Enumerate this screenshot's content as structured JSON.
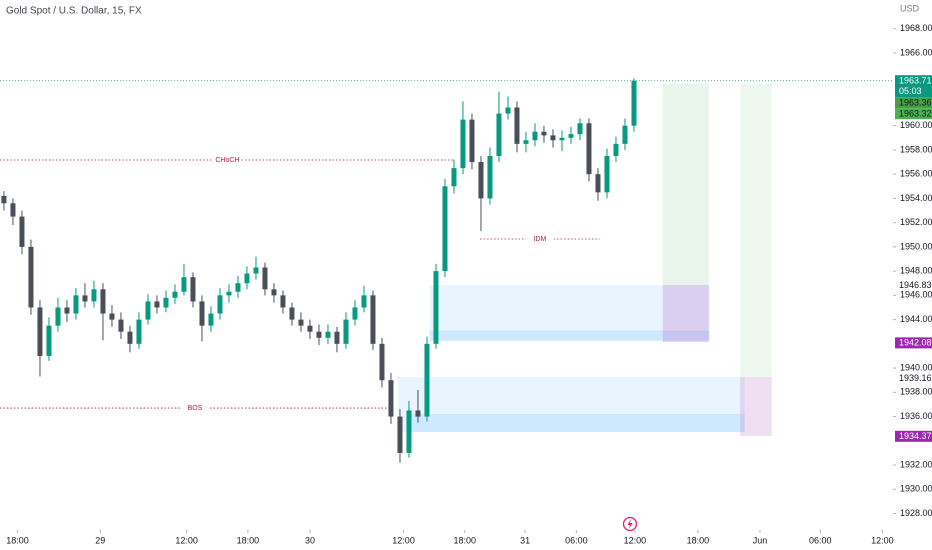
{
  "chart_data": {
    "type": "candlestick",
    "title": "Gold Spot / U.S. Dollar, 15, FX",
    "currency": "USD",
    "up_color": "#089981",
    "down_color": "#4a4e57",
    "open": [
      1954.2,
      1953.6,
      1952.5,
      1950,
      1945,
      1941,
      1943.5,
      1945,
      1944.5,
      1946,
      1945.5,
      1946.5,
      1944.5,
      1944,
      1943,
      1942,
      1944,
      1945.5,
      1945,
      1945.8,
      1946.3,
      1947.5,
      1945.5,
      1943.5,
      1944.5,
      1946,
      1946.3,
      1947,
      1947.8,
      1948.3,
      1946.5,
      1946,
      1945,
      1944,
      1943.5,
      1943,
      1942.5,
      1943,
      1942,
      1944,
      1945,
      1946,
      1942,
      1939,
      1936,
      1933,
      1936.5,
      1936,
      1942,
      1948,
      1955,
      1956.5,
      1960.5,
      1957,
      1954,
      1957.5,
      1961,
      1961.5,
      1958.5,
      1958.8,
      1959.5,
      1959.2,
      1958.8,
      1959,
      1959.3,
      1960.2,
      1956,
      1954.5,
      1957.5,
      1958.5,
      1960
    ],
    "high": [
      1954.6,
      1954.0,
      1953.0,
      1950.6,
      1945.6,
      1944.2,
      1945.8,
      1945.6,
      1946.6,
      1947.0,
      1947.2,
      1947.0,
      1945.2,
      1944.6,
      1943.5,
      1944.6,
      1946.1,
      1946.0,
      1946.4,
      1946.9,
      1948.6,
      1947.9,
      1946.0,
      1945.1,
      1946.6,
      1946.9,
      1947.6,
      1948.4,
      1949.2,
      1948.7,
      1947.0,
      1946.4,
      1945.4,
      1944.6,
      1944.0,
      1943.6,
      1943.6,
      1943.4,
      1944.6,
      1945.6,
      1946.8,
      1946.4,
      1942.5,
      1939.6,
      1936.6,
      1937.3,
      1938.2,
      1942.6,
      1948.6,
      1955.6,
      1957.2,
      1962.0,
      1961.0,
      1957.5,
      1958.2,
      1962.8,
      1962.4,
      1962.0,
      1959.5,
      1960.2,
      1960.0,
      1959.7,
      1959.6,
      1959.9,
      1960.6,
      1960.6,
      1956.5,
      1958.1,
      1959.1,
      1960.6,
      1963.9
    ],
    "low": [
      1953.0,
      1951.8,
      1949.4,
      1944.4,
      1939.3,
      1940.6,
      1943.0,
      1943.8,
      1944.0,
      1945.0,
      1945.0,
      1942.3,
      1943.4,
      1942.4,
      1941.3,
      1941.6,
      1943.6,
      1944.5,
      1944.6,
      1945.3,
      1946.0,
      1945.0,
      1942.2,
      1943.0,
      1944.0,
      1945.4,
      1945.8,
      1946.5,
      1947.3,
      1946.0,
      1945.4,
      1944.5,
      1943.5,
      1943.0,
      1942.4,
      1941.9,
      1942.0,
      1941.3,
      1941.6,
      1943.5,
      1944.6,
      1941.5,
      1938.4,
      1935.4,
      1932.2,
      1932.6,
      1935.5,
      1935.6,
      1941.6,
      1947.5,
      1954.4,
      1956.0,
      1956.4,
      1951.3,
      1953.5,
      1957.0,
      1960.5,
      1957.8,
      1957.8,
      1958.3,
      1958.6,
      1958.2,
      1957.9,
      1958.5,
      1958.8,
      1955.4,
      1953.8,
      1954.0,
      1957.0,
      1958.0,
      1959.5
    ],
    "close": [
      1953.6,
      1952.5,
      1950,
      1945,
      1941,
      1943.5,
      1945,
      1944.5,
      1946,
      1945.5,
      1946.5,
      1944.5,
      1944,
      1943,
      1942,
      1944,
      1945.5,
      1945,
      1945.8,
      1946.3,
      1947.5,
      1945.5,
      1943.5,
      1944.5,
      1946,
      1946.3,
      1947,
      1947.8,
      1948.3,
      1946.5,
      1946,
      1945,
      1944,
      1943.5,
      1943,
      1942.5,
      1943,
      1942,
      1944,
      1945,
      1946,
      1942,
      1939,
      1936,
      1933,
      1936.5,
      1936,
      1942,
      1948,
      1955,
      1956.5,
      1960.5,
      1957,
      1954,
      1957.5,
      1961,
      1961.5,
      1958.5,
      1958.8,
      1959.5,
      1959.2,
      1958.8,
      1959,
      1959.3,
      1960.2,
      1956,
      1954.5,
      1957.5,
      1958.5,
      1960,
      1963.71
    ],
    "xlim": [
      -0.44,
      98.78
    ],
    "ylim": [
      1926.64,
      1970.37
    ],
    "xticks": [
      {
        "value": 1.5,
        "label": "18:00"
      },
      {
        "value": 10.7,
        "label": "29"
      },
      {
        "value": 20.3,
        "label": "12:00"
      },
      {
        "value": 27.1,
        "label": "18:00"
      },
      {
        "value": 34,
        "label": "30"
      },
      {
        "value": 44.4,
        "label": "12:00"
      },
      {
        "value": 51.2,
        "label": "18:00"
      },
      {
        "value": 57.9,
        "label": "31"
      },
      {
        "value": 63.6,
        "label": "06:00"
      },
      {
        "value": 70.1,
        "label": "12:00"
      },
      {
        "value": 77.1,
        "label": "18:00"
      },
      {
        "value": 84,
        "label": "Jun"
      },
      {
        "value": 90.7,
        "label": "06:00"
      },
      {
        "value": 97.6,
        "label": "12:00"
      }
    ],
    "yticks": [
      {
        "value": 1968,
        "label": "1968.00"
      },
      {
        "value": 1966,
        "label": "1966.00"
      },
      {
        "value": 1960,
        "label": "1960.00"
      },
      {
        "value": 1958,
        "label": "1958.00"
      },
      {
        "value": 1956,
        "label": "1956.00"
      },
      {
        "value": 1954,
        "label": "1954.00"
      },
      {
        "value": 1952,
        "label": "1952.00"
      },
      {
        "value": 1950,
        "label": "1950.00"
      },
      {
        "value": 1948,
        "label": "1948.00"
      },
      {
        "value": 1946,
        "label": "1946.00"
      },
      {
        "value": 1944,
        "label": "1944.00"
      },
      {
        "value": 1940,
        "label": "1940.00"
      },
      {
        "value": 1938,
        "label": "1938.00"
      },
      {
        "value": 1936,
        "label": "1936.00"
      },
      {
        "value": 1932,
        "label": "1932.00"
      },
      {
        "value": 1930,
        "label": "1930.00"
      },
      {
        "value": 1928,
        "label": "1928.00"
      }
    ],
    "levels": [
      {
        "label": "CHoCH",
        "value": 1957.17,
        "from": -0.44,
        "to": 50.1,
        "color": "#b71c3c"
      },
      {
        "label": "BOS",
        "value": 1936.7,
        "from": -0.44,
        "to": 42.9,
        "color": "#b71c3c"
      },
      {
        "label": "IDM",
        "value": 1950.65,
        "from": 52.9,
        "to": 66.2,
        "color": "#b71c3c"
      }
    ],
    "zones": [
      {
        "x": [
          47.3,
          78.4
        ],
        "y": [
          1942.3,
          1946.85
        ],
        "color": "rgba(33,150,243,0.10)"
      },
      {
        "x": [
          47.3,
          78.4
        ],
        "y": [
          1942.2,
          1943.1
        ],
        "color": "rgba(33,150,243,0.12)"
      },
      {
        "x": [
          43.8,
          82.3
        ],
        "y": [
          1934.72,
          1939.26
        ],
        "color": "rgba(33,150,243,0.10)"
      },
      {
        "x": [
          45,
          82.3
        ],
        "y": [
          1934.72,
          1936.21
        ],
        "color": "rgba(33,150,243,0.12)"
      },
      {
        "x": [
          73.2,
          78.3
        ],
        "y": [
          1946.85,
          1963.44
        ],
        "color": "rgba(76,175,80,0.12)"
      },
      {
        "x": [
          73.2,
          78.3
        ],
        "y": [
          1942.15,
          1946.85
        ],
        "color": "rgba(156,39,176,0.18)"
      },
      {
        "x": [
          81.8,
          85.3
        ],
        "y": [
          1939.26,
          1963.44
        ],
        "color": "rgba(76,175,80,0.10)"
      },
      {
        "x": [
          81.8,
          85.3
        ],
        "y": [
          1934.4,
          1939.26
        ],
        "color": "rgba(186,104,200,0.22)"
      }
    ],
    "price_labels": [
      {
        "value": 1963.71,
        "note": "05:03",
        "color": "#089981",
        "text_color": "#ffffff"
      },
      {
        "value": 1963.36,
        "color": "#43a047",
        "text_color": "#131722"
      },
      {
        "value": 1963.32,
        "color": "#4caf50",
        "text_color": "#131722"
      },
      {
        "value": 1946.83,
        "color": "#ffffff",
        "text_color": "#131722"
      },
      {
        "value": 1942.08,
        "color": "#9c27b0",
        "text_color": "#ffffff"
      },
      {
        "value": 1939.16,
        "color": "#ffffff",
        "text_color": "#131722"
      },
      {
        "value": 1934.37,
        "color": "#9c27b0",
        "text_color": "#ffffff"
      }
    ]
  }
}
